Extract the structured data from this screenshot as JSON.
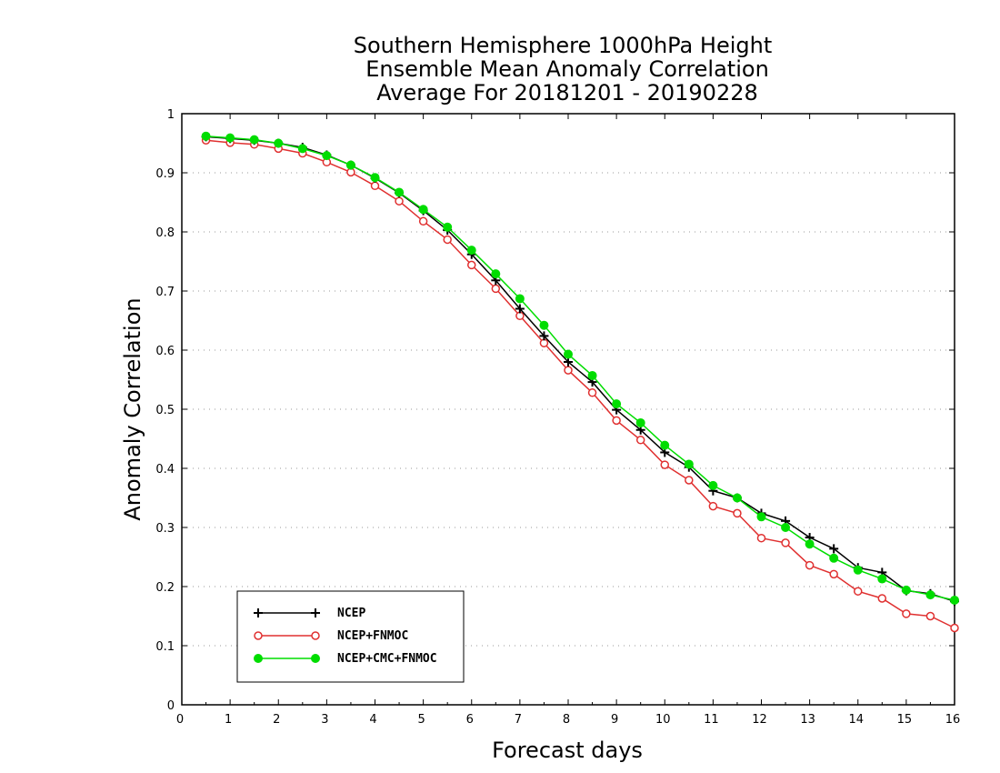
{
  "chart_data": {
    "type": "line",
    "title": [
      "Southern Hemisphere 1000hPa Height",
      "Ensemble Mean Anomaly Correlation",
      "Average For 20181201 - 20190228"
    ],
    "xlabel": "Forecast days",
    "ylabel": "Anomaly Correlation",
    "xlim": [
      0,
      16
    ],
    "ylim": [
      0,
      1
    ],
    "xticks": [
      "0",
      "1",
      "2",
      "3",
      "4",
      "5",
      "6",
      "7",
      "8",
      "9",
      "10",
      "11",
      "12",
      "13",
      "14",
      "15",
      "16"
    ],
    "yticks": [
      "0",
      "0.1",
      "0.2",
      "0.3",
      "0.4",
      "0.5",
      "0.6",
      "0.7",
      "0.8",
      "0.9",
      "1"
    ],
    "grid": "horizontal-dotted",
    "legend_position": "bottom-left",
    "x": [
      0.5,
      1,
      1.5,
      2,
      2.5,
      3,
      3.5,
      4,
      4.5,
      5,
      5.5,
      6,
      6.5,
      7,
      7.5,
      8,
      8.5,
      9,
      9.5,
      10,
      10.5,
      11,
      11.5,
      12,
      12.5,
      13,
      13.5,
      14,
      14.5,
      15,
      15.5,
      16
    ],
    "series": [
      {
        "name": "NCEP",
        "color": "#000000",
        "marker": "plus",
        "values": [
          0.961,
          0.958,
          0.955,
          0.95,
          0.943,
          0.93,
          0.913,
          0.891,
          0.866,
          0.836,
          0.803,
          0.762,
          0.718,
          0.67,
          0.624,
          0.58,
          0.546,
          0.499,
          0.465,
          0.427,
          0.402,
          0.362,
          0.35,
          0.324,
          0.311,
          0.283,
          0.264,
          0.232,
          0.224,
          0.193,
          0.188,
          0.175
        ]
      },
      {
        "name": "NCEP+FNMOC",
        "color": "#e03030",
        "marker": "open-circle",
        "values": [
          0.955,
          0.951,
          0.948,
          0.941,
          0.933,
          0.918,
          0.901,
          0.878,
          0.852,
          0.818,
          0.787,
          0.744,
          0.704,
          0.658,
          0.612,
          0.566,
          0.528,
          0.481,
          0.448,
          0.406,
          0.38,
          0.336,
          0.324,
          0.282,
          0.274,
          0.236,
          0.221,
          0.192,
          0.18,
          0.154,
          0.15,
          0.13
        ]
      },
      {
        "name": "NCEP+CMC+FNMOC",
        "color": "#00dd00",
        "marker": "filled-circle",
        "values": [
          0.962,
          0.959,
          0.956,
          0.95,
          0.941,
          0.929,
          0.913,
          0.892,
          0.867,
          0.838,
          0.808,
          0.769,
          0.729,
          0.687,
          0.642,
          0.593,
          0.557,
          0.509,
          0.477,
          0.439,
          0.407,
          0.371,
          0.35,
          0.318,
          0.3,
          0.272,
          0.248,
          0.228,
          0.213,
          0.194,
          0.186,
          0.177
        ]
      }
    ]
  }
}
